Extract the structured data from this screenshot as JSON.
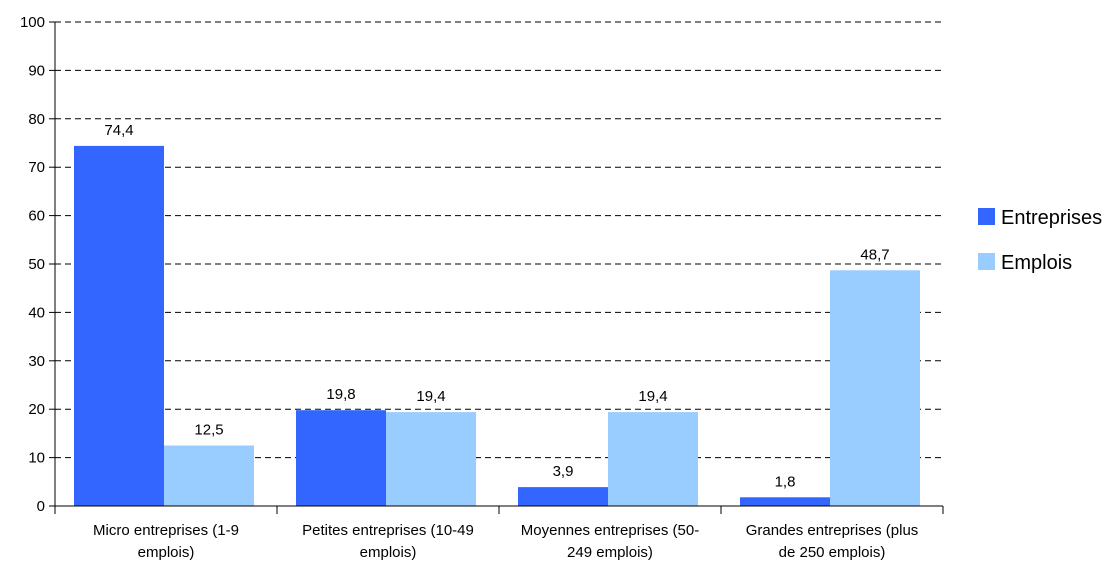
{
  "chart_data": {
    "type": "bar",
    "title": "",
    "xlabel": "",
    "ylabel": "",
    "ylim": [
      0,
      100
    ],
    "yticks": [
      0,
      10,
      20,
      30,
      40,
      50,
      60,
      70,
      80,
      90,
      100
    ],
    "grid": "horizontal-dashed",
    "legend_position": "right",
    "categories": [
      [
        "Micro entreprises (1-9",
        "emplois)"
      ],
      [
        "Petites entreprises (10-49",
        "emplois)"
      ],
      [
        "Moyennes entreprises (50-",
        "249 emplois)"
      ],
      [
        "Grandes entreprises (plus",
        "de 250 emplois)"
      ]
    ],
    "series": [
      {
        "name": "Entreprises",
        "color": "#3366FF",
        "values": [
          74.4,
          19.8,
          3.9,
          1.8
        ],
        "labels": [
          "74,4",
          "19,8",
          "3,9",
          "1,8"
        ]
      },
      {
        "name": "Emplois",
        "color": "#99CCFF",
        "values": [
          12.5,
          19.4,
          19.4,
          48.7
        ],
        "labels": [
          "12,5",
          "19,4",
          "19,4",
          "48,7"
        ]
      }
    ]
  }
}
